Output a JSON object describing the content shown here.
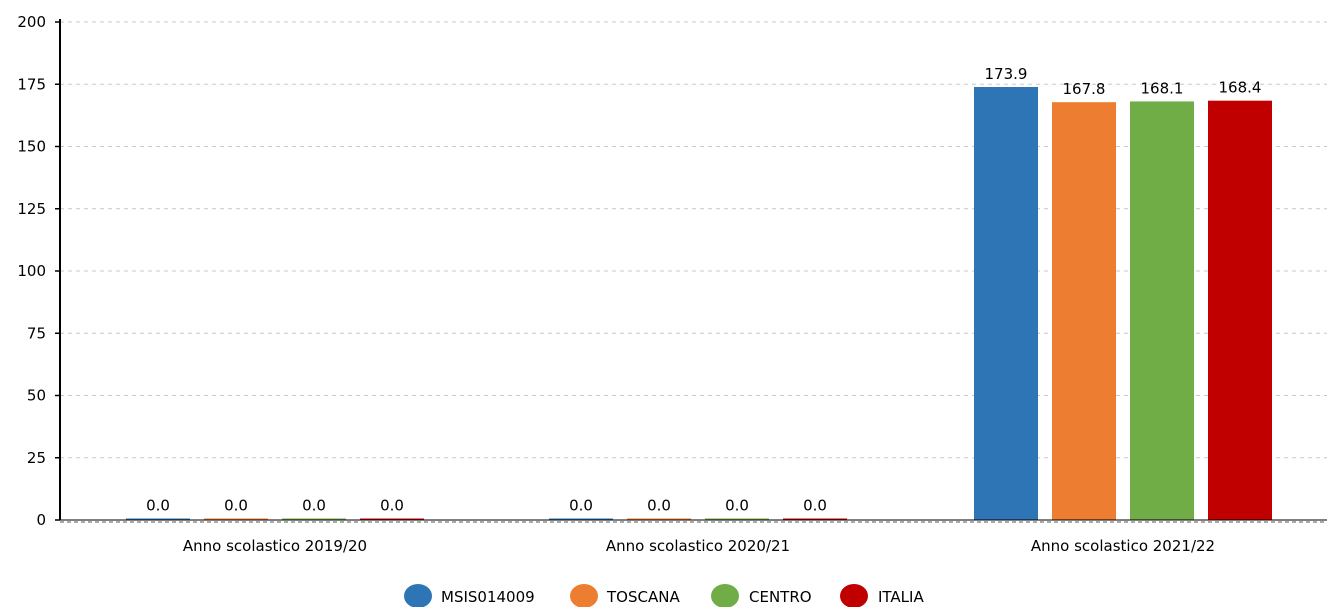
{
  "chart_data": {
    "type": "bar",
    "title": "",
    "xlabel": "",
    "ylabel": "",
    "ylim": [
      0,
      200
    ],
    "yticks": [
      0,
      25,
      50,
      75,
      100,
      125,
      150,
      175,
      200
    ],
    "grid": true,
    "legend_position": "bottom",
    "categories": [
      "Anno scolastico 2019/20",
      "Anno scolastico 2020/21",
      "Anno scolastico 2021/22"
    ],
    "series": [
      {
        "name": "MSIS014009",
        "color": "#2e75b6",
        "values": [
          0.0,
          0.0,
          173.9
        ],
        "labels": [
          "0.0",
          "0.0",
          "173.9"
        ]
      },
      {
        "name": "TOSCANA",
        "color": "#ed7d31",
        "values": [
          0.0,
          0.0,
          167.8
        ],
        "labels": [
          "0.0",
          "0.0",
          "167.8"
        ]
      },
      {
        "name": "CENTRO",
        "color": "#70ad47",
        "values": [
          0.0,
          0.0,
          168.1
        ],
        "labels": [
          "0.0",
          "0.0",
          "168.1"
        ]
      },
      {
        "name": "ITALIA",
        "color": "#c00000",
        "values": [
          0.0,
          0.0,
          168.4
        ],
        "labels": [
          "0.0",
          "0.0",
          "168.4"
        ]
      }
    ]
  }
}
